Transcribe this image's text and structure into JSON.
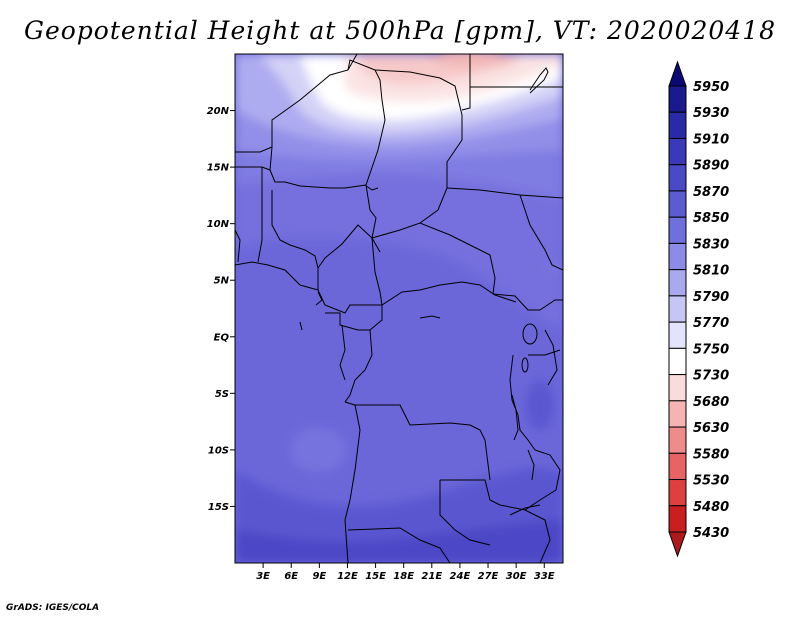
{
  "title": "Geopotential Height at 500hPa [gpm], VT: 2020020418",
  "credit": "GrADS: IGES/COLA",
  "map": {
    "lat_labels": [
      "20N",
      "15N",
      "10N",
      "5N",
      "EQ",
      "5S",
      "10S",
      "15S"
    ],
    "lat_values": [
      20,
      15,
      10,
      5,
      0,
      -5,
      -10,
      -15
    ],
    "lon_labels": [
      "3E",
      "6E",
      "9E",
      "12E",
      "15E",
      "18E",
      "21E",
      "24E",
      "27E",
      "30E",
      "33E"
    ],
    "lon_values": [
      3,
      6,
      9,
      12,
      15,
      18,
      21,
      24,
      27,
      30,
      33
    ],
    "lon_range": [
      0,
      35
    ],
    "lat_range": [
      -20,
      25
    ]
  },
  "colorbar": {
    "levels": [
      "5950",
      "5930",
      "5910",
      "5890",
      "5870",
      "5850",
      "5830",
      "5810",
      "5790",
      "5770",
      "5750",
      "5730",
      "5680",
      "5630",
      "5580",
      "5530",
      "5480",
      "5430"
    ],
    "colors": [
      "#0b0a72",
      "#1b1a8c",
      "#2a2aa6",
      "#3a3ab8",
      "#4a4ac4",
      "#5c5cd0",
      "#7070dc",
      "#8c8ce6",
      "#a9a9ee",
      "#c6c6f4",
      "#e3e3f9",
      "#ffffff",
      "#fbdcdc",
      "#f5b4b4",
      "#ee8c8c",
      "#e66464",
      "#de4040",
      "#c82020",
      "#aa1a1a"
    ]
  }
}
